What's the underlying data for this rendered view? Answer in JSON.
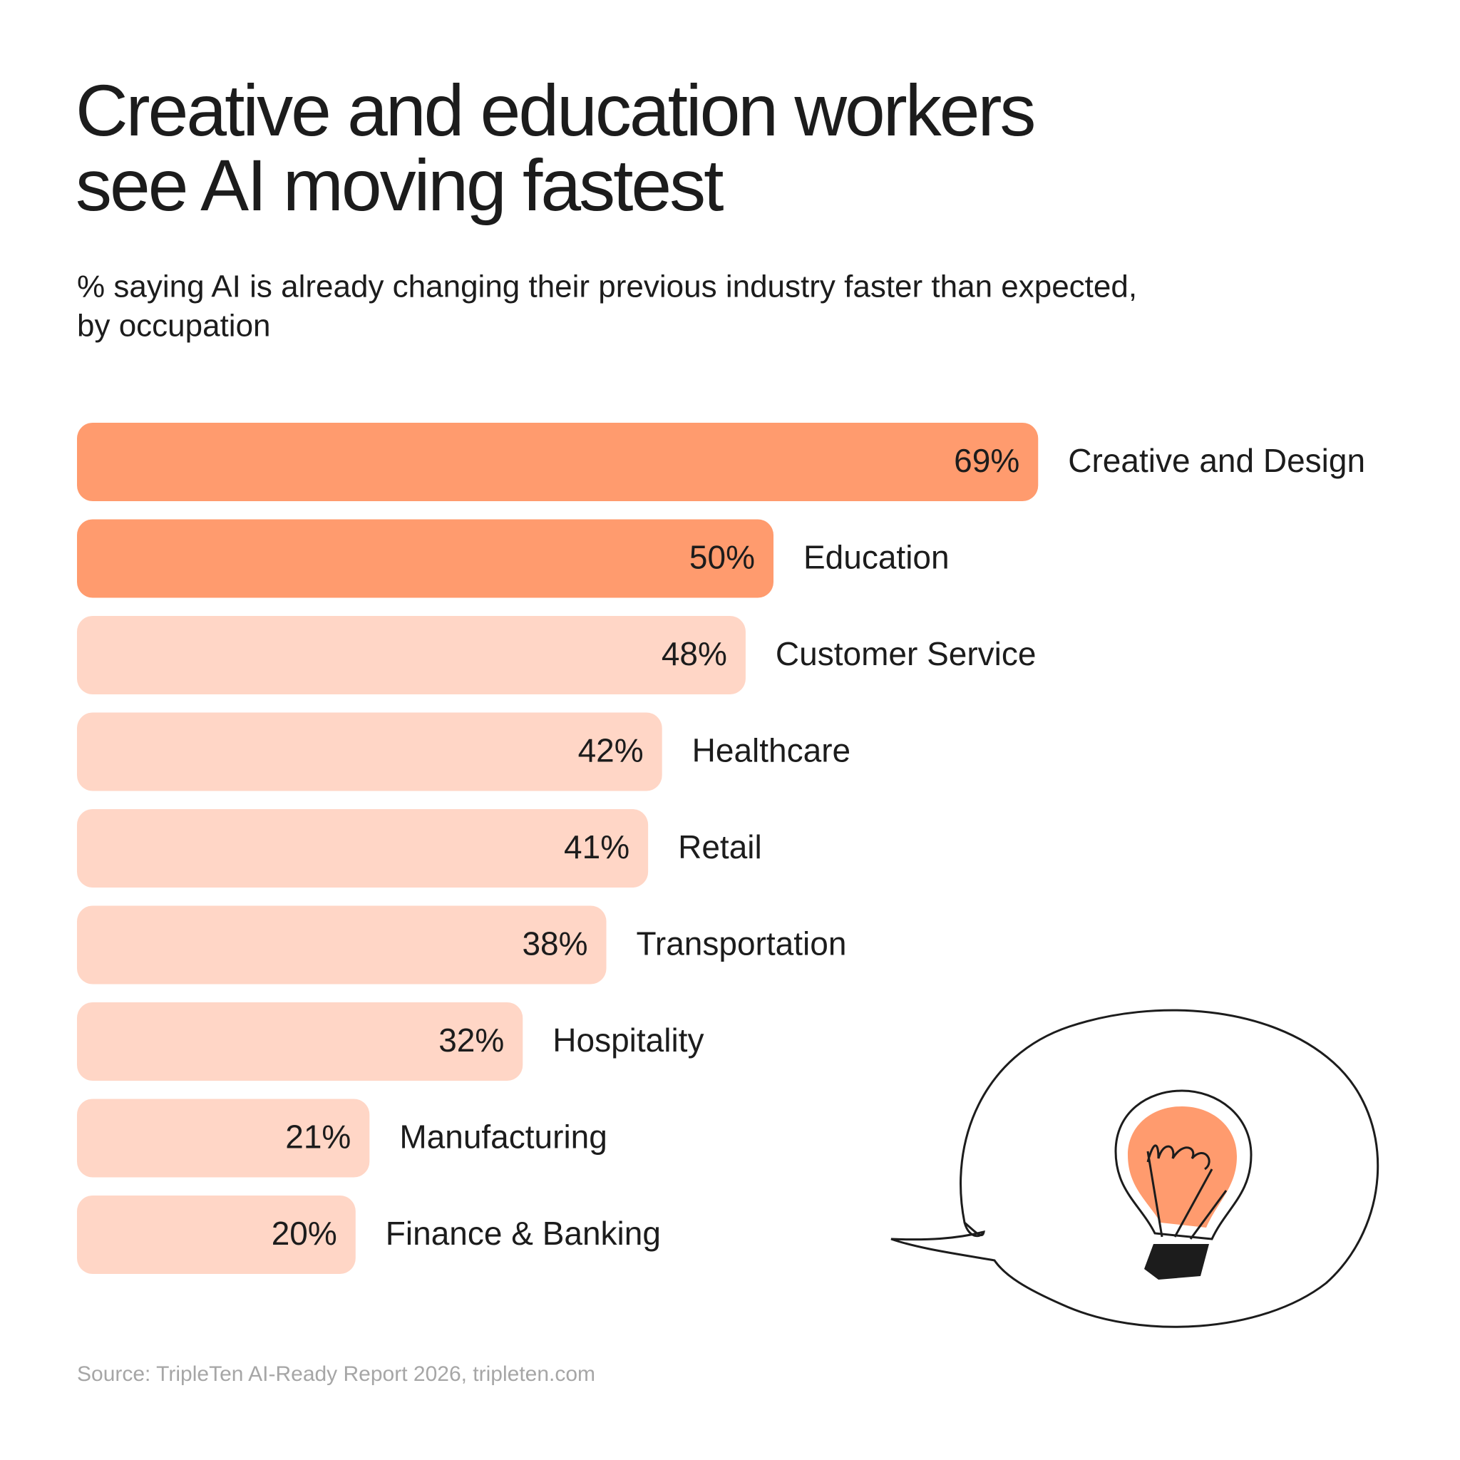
{
  "chart_data": {
    "type": "bar",
    "orientation": "horizontal",
    "title": [
      "Creative and education workers",
      "see AI moving fastest"
    ],
    "subtitle": [
      "% saying AI is already changing their previous industry faster than expected,",
      "by occupation"
    ],
    "categories": [
      "Creative and Design",
      "Education",
      "Customer Service",
      "Healthcare",
      "Retail",
      "Transportation",
      "Hospitality",
      "Manufacturing",
      "Finance & Banking"
    ],
    "values": [
      69,
      50,
      48,
      42,
      41,
      38,
      32,
      21,
      20
    ],
    "value_labels": [
      "69%",
      "50%",
      "48%",
      "42%",
      "41%",
      "38%",
      "32%",
      "21%",
      "20%"
    ],
    "colors": [
      "#ff9b6e",
      "#ff9b6e",
      "#ffd6c6",
      "#ffd6c6",
      "#ffd6c6",
      "#ffd6c6",
      "#ffd6c6",
      "#ffd6c6",
      "#ffd6c6"
    ],
    "source": "Source: TripleTen AI-Ready Report 2026, tripleten.com"
  }
}
